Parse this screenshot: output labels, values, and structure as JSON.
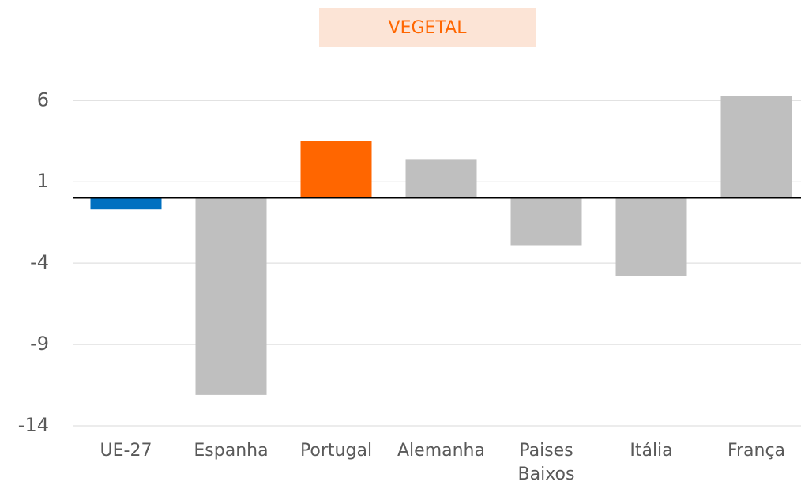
{
  "chart_data": {
    "type": "bar",
    "title": "VEGETAL",
    "categories": [
      "UE-27",
      "Espanha",
      "Portugal",
      "Alemanha",
      "Paises Baixos",
      "Itália",
      "França"
    ],
    "values": [
      -0.7,
      -12.1,
      3.5,
      2.4,
      -2.9,
      -4.8,
      6.3
    ],
    "colors": [
      "#0070c0",
      "#bfbfbf",
      "#ff6600",
      "#bfbfbf",
      "#bfbfbf",
      "#bfbfbf",
      "#bfbfbf"
    ],
    "ylim": [
      -14,
      6.5
    ],
    "yticks": [
      6,
      1,
      -4,
      -9,
      -14
    ],
    "grid": true
  }
}
